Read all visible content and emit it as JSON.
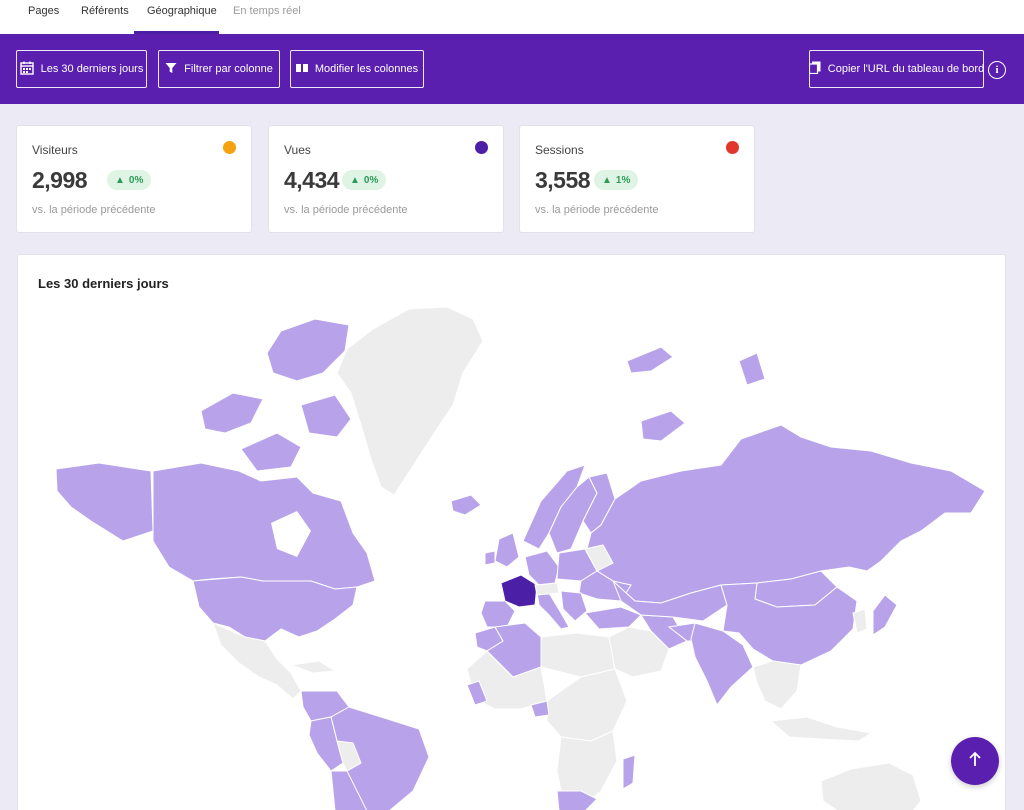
{
  "tabs": [
    {
      "label": "Pages",
      "active": false
    },
    {
      "label": "Référents",
      "active": false
    },
    {
      "label": "Géographique",
      "active": true
    },
    {
      "label": "En temps réel",
      "active": false
    }
  ],
  "toolbar": {
    "date_range_label": "Les 30 derniers jours",
    "filter_label": "Filtrer par colonne",
    "columns_label": "Modifier les colonnes",
    "copy_url_label": "Copier l'URL du tableau de bord",
    "info_symbol": "i"
  },
  "stats": [
    {
      "label": "Visiteurs",
      "value": "2,998",
      "change": "0%",
      "comparison": "vs. la période précédente",
      "dot_color": "#f5a212"
    },
    {
      "label": "Vues",
      "value": "4,434",
      "change": "0%",
      "comparison": "vs. la période précédente",
      "dot_color": "#4b1fa6"
    },
    {
      "label": "Sessions",
      "value": "3,558",
      "change": "1%",
      "comparison": "vs. la période précédente",
      "dot_color": "#e0362c"
    }
  ],
  "map": {
    "title": "Les 30 derniers jours",
    "highlight_country": "France",
    "colors": {
      "visited": "#b8a3ea",
      "no_data": "#ededed",
      "top": "#4b1fa6"
    }
  }
}
